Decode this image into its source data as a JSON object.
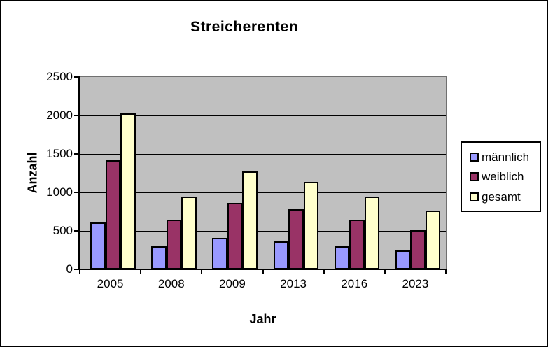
{
  "window": {
    "background": "#FFFFFF",
    "border_color": "#000000"
  },
  "chart_data": {
    "type": "bar",
    "title": "Streicherenten",
    "xlabel": "Jahr",
    "ylabel": "Anzahl",
    "categories": [
      "2005",
      "2008",
      "2009",
      "2013",
      "2016",
      "2023"
    ],
    "series": [
      {
        "name": "männlich",
        "color": "#9999FF",
        "values": [
          610,
          300,
          410,
          360,
          300,
          250
        ]
      },
      {
        "name": "weiblich",
        "color": "#993366",
        "values": [
          1420,
          650,
          860,
          780,
          650,
          510
        ]
      },
      {
        "name": "gesamt",
        "color": "#FFFFCC",
        "values": [
          2030,
          950,
          1270,
          1140,
          950,
          760
        ]
      }
    ],
    "ylim": [
      0,
      2500
    ],
    "y_ticks": [
      0,
      500,
      1000,
      1500,
      2000,
      2500
    ],
    "grid": "horizontal",
    "gridline_color": "#000000",
    "plot_background": "#C0C0C0",
    "legend_position": "right"
  }
}
